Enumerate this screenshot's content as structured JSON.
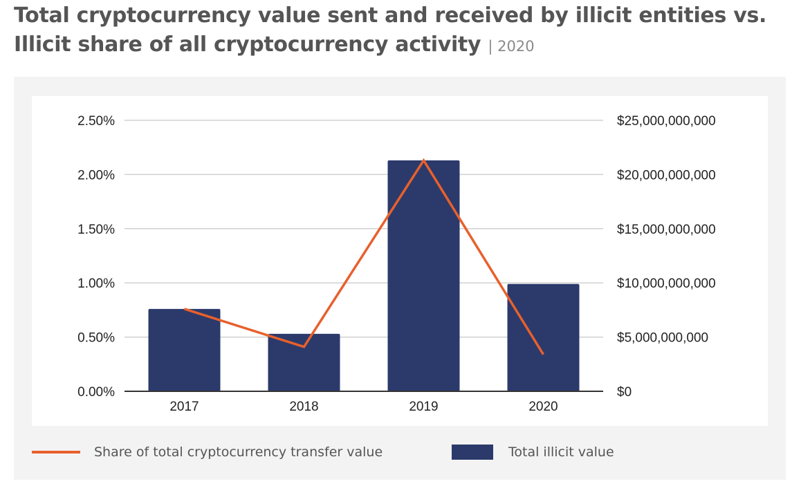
{
  "title": {
    "main": "Total cryptocurrency value sent and received by illicit entities vs. Illicit share of all cryptocurrency activity",
    "separator": "|",
    "year": "2020"
  },
  "colors": {
    "bar": "#2b3a6b",
    "line": "#e8602c",
    "grid": "#d0d0d0",
    "axis": "#333333"
  },
  "chart_data": {
    "type": "bar+line",
    "categories": [
      "2017",
      "2018",
      "2019",
      "2020"
    ],
    "series": [
      {
        "name": "Total illicit value",
        "type": "bar",
        "axis": "right",
        "values": [
          7600000000,
          5300000000,
          21300000000,
          9900000000
        ]
      },
      {
        "name": "Share of total cryptocurrency transfer value",
        "type": "line",
        "axis": "left",
        "values": [
          0.76,
          0.41,
          2.13,
          0.34
        ]
      }
    ],
    "y_left": {
      "min": 0,
      "max": 2.5,
      "ticks": [
        0,
        0.5,
        1.0,
        1.5,
        2.0,
        2.5
      ],
      "tick_labels": [
        "0.00%",
        "0.50%",
        "1.00%",
        "1.50%",
        "2.00%",
        "2.50%"
      ]
    },
    "y_right": {
      "min": 0,
      "max": 25000000000,
      "ticks": [
        0,
        5000000000,
        10000000000,
        15000000000,
        20000000000,
        25000000000
      ],
      "tick_labels": [
        "$0",
        "$5,000,000,000",
        "$10,000,000,000",
        "$15,000,000,000",
        "$20,000,000,000",
        "$25,000,000,000"
      ]
    },
    "grid": true,
    "legend_position": "bottom"
  },
  "legend": {
    "line_label": "Share of total cryptocurrency transfer value",
    "bar_label": "Total illicit value"
  }
}
